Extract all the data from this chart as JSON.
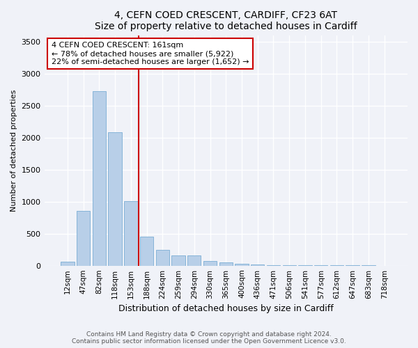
{
  "title": "4, CEFN COED CRESCENT, CARDIFF, CF23 6AT",
  "subtitle": "Size of property relative to detached houses in Cardiff",
  "xlabel": "Distribution of detached houses by size in Cardiff",
  "ylabel": "Number of detached properties",
  "categories": [
    "12sqm",
    "47sqm",
    "82sqm",
    "118sqm",
    "153sqm",
    "188sqm",
    "224sqm",
    "259sqm",
    "294sqm",
    "330sqm",
    "365sqm",
    "400sqm",
    "436sqm",
    "471sqm",
    "506sqm",
    "541sqm",
    "577sqm",
    "612sqm",
    "647sqm",
    "683sqm",
    "718sqm"
  ],
  "values": [
    60,
    855,
    2730,
    2080,
    1010,
    455,
    250,
    160,
    160,
    70,
    50,
    30,
    20,
    10,
    5,
    5,
    3,
    2,
    2,
    2,
    1
  ],
  "bar_color": "#b8cfe8",
  "bar_edge_color": "#7aadd4",
  "vline_color": "#cc0000",
  "annotation_text": "4 CEFN COED CRESCENT: 161sqm\n← 78% of detached houses are smaller (5,922)\n22% of semi-detached houses are larger (1,652) →",
  "annotation_box_color": "#cc0000",
  "ylim": [
    0,
    3600
  ],
  "yticks": [
    0,
    500,
    1000,
    1500,
    2000,
    2500,
    3000,
    3500
  ],
  "background_color": "#f0f2f8",
  "plot_bg_color": "#f0f2f8",
  "grid_color": "#ffffff",
  "footer_line1": "Contains HM Land Registry data © Crown copyright and database right 2024.",
  "footer_line2": "Contains public sector information licensed under the Open Government Licence v3.0."
}
